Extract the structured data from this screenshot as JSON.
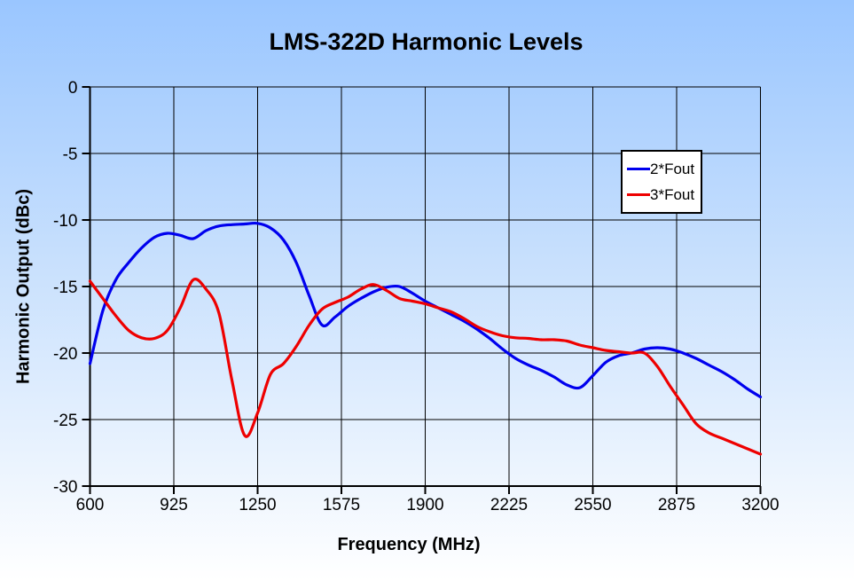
{
  "title": "LMS-322D Harmonic Levels",
  "axes": {
    "x_label": "Frequency (MHz)",
    "y_label": "Harmonic Output (dBc)"
  },
  "legend": {
    "items": [
      {
        "label": "2*Fout",
        "color": "#0000ee"
      },
      {
        "label": "3*Fout",
        "color": "#ee0000"
      }
    ]
  },
  "colors": {
    "background_top": "#9ac6ff",
    "background_bottom": "#ffffff",
    "grid": "#000000",
    "axis": "#000000",
    "legend_bg": "#ffffff",
    "legend_border": "#000000"
  },
  "chart_data": {
    "type": "line",
    "title": "LMS-322D Harmonic Levels",
    "xlabel": "Frequency (MHz)",
    "ylabel": "Harmonic Output (dBc)",
    "xlim": [
      600,
      3200
    ],
    "ylim": [
      -30,
      0
    ],
    "x_ticks": [
      600,
      925,
      1250,
      1575,
      1900,
      2225,
      2550,
      2875,
      3200
    ],
    "y_ticks": [
      0,
      -5,
      -10,
      -15,
      -20,
      -25,
      -30
    ],
    "grid": true,
    "legend_position": "upper right inside",
    "x": [
      600,
      650,
      700,
      750,
      800,
      850,
      900,
      950,
      1000,
      1050,
      1100,
      1150,
      1200,
      1250,
      1300,
      1350,
      1400,
      1450,
      1500,
      1550,
      1600,
      1650,
      1700,
      1750,
      1800,
      1850,
      1900,
      1950,
      2000,
      2050,
      2100,
      2150,
      2200,
      2250,
      2300,
      2350,
      2400,
      2450,
      2500,
      2550,
      2600,
      2650,
      2700,
      2750,
      2800,
      2850,
      2900,
      2950,
      3000,
      3050,
      3100,
      3150,
      3200
    ],
    "series": [
      {
        "name": "2*Fout",
        "color": "#0000ee",
        "values": [
          -20.8,
          -16.8,
          -14.5,
          -13.2,
          -12.1,
          -11.3,
          -11.0,
          -11.15,
          -11.4,
          -10.8,
          -10.45,
          -10.35,
          -10.3,
          -10.25,
          -10.6,
          -11.5,
          -13.2,
          -15.7,
          -17.9,
          -17.3,
          -16.5,
          -15.9,
          -15.4,
          -15.05,
          -15.0,
          -15.5,
          -16.1,
          -16.6,
          -17.1,
          -17.6,
          -18.2,
          -18.9,
          -19.7,
          -20.4,
          -20.9,
          -21.3,
          -21.8,
          -22.4,
          -22.6,
          -21.7,
          -20.7,
          -20.2,
          -20.0,
          -19.7,
          -19.6,
          -19.7,
          -20.0,
          -20.4,
          -20.9,
          -21.4,
          -22.0,
          -22.7,
          -23.3
        ]
      },
      {
        "name": "3*Fout",
        "color": "#ee0000",
        "values": [
          -14.6,
          -15.9,
          -17.2,
          -18.3,
          -18.85,
          -18.9,
          -18.3,
          -16.6,
          -14.5,
          -15.2,
          -17.0,
          -22.0,
          -26.2,
          -24.5,
          -21.6,
          -20.8,
          -19.5,
          -17.9,
          -16.7,
          -16.2,
          -15.8,
          -15.2,
          -14.85,
          -15.3,
          -15.9,
          -16.1,
          -16.3,
          -16.6,
          -16.9,
          -17.4,
          -18.0,
          -18.4,
          -18.7,
          -18.85,
          -18.9,
          -19.0,
          -19.0,
          -19.1,
          -19.4,
          -19.6,
          -19.8,
          -19.9,
          -20.0,
          -20.0,
          -21.0,
          -22.5,
          -23.9,
          -25.3,
          -26.0,
          -26.4,
          -26.8,
          -27.2,
          -27.6
        ]
      }
    ]
  }
}
